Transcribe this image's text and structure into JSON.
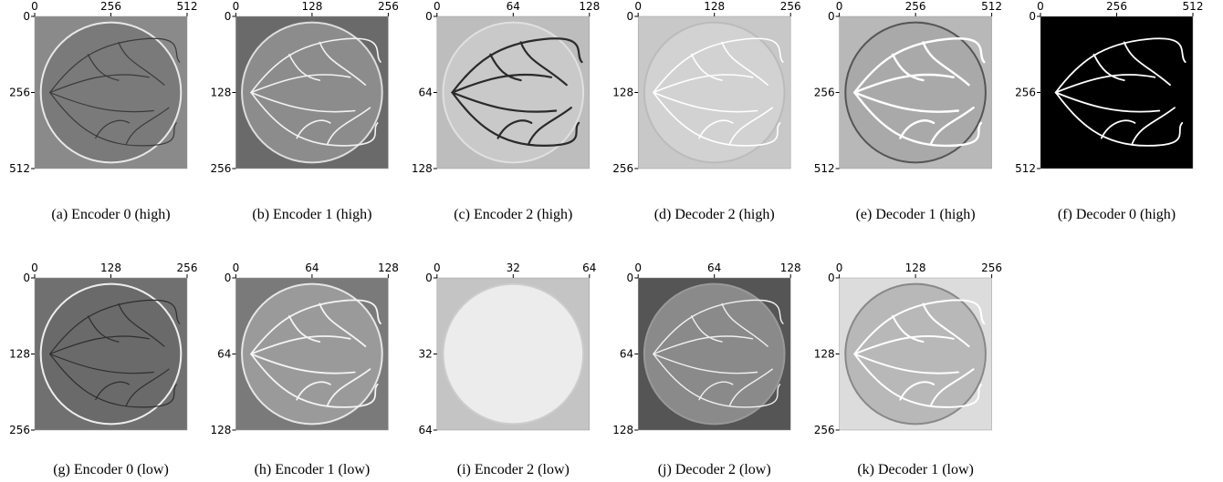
{
  "panels": [
    {
      "caption": "(a) Encoder 0 (high)",
      "ticks": [
        0,
        256,
        512
      ]
    },
    {
      "caption": "(b) Encoder 1 (high)",
      "ticks": [
        0,
        128,
        256
      ]
    },
    {
      "caption": "(c) Encoder 2 (high)",
      "ticks": [
        0,
        64,
        128
      ]
    },
    {
      "caption": "(d) Decoder 2 (high)",
      "ticks": [
        0,
        128,
        256
      ]
    },
    {
      "caption": "(e) Decoder 1 (high)",
      "ticks": [
        0,
        256,
        512
      ]
    },
    {
      "caption": "(f) Decoder 0 (high)",
      "ticks": [
        0,
        256,
        512
      ]
    },
    {
      "caption": "(g) Encoder 0 (low)",
      "ticks": [
        0,
        128,
        256
      ]
    },
    {
      "caption": "(h) Encoder 1 (low)",
      "ticks": [
        0,
        64,
        128
      ]
    },
    {
      "caption": "(i) Encoder 2 (low)",
      "ticks": [
        0,
        32,
        64
      ]
    },
    {
      "caption": "(j) Decoder 2 (low)",
      "ticks": [
        0,
        64,
        128
      ]
    },
    {
      "caption": "(k) Decoder 1 (low)",
      "ticks": [
        0,
        128,
        256
      ]
    }
  ]
}
